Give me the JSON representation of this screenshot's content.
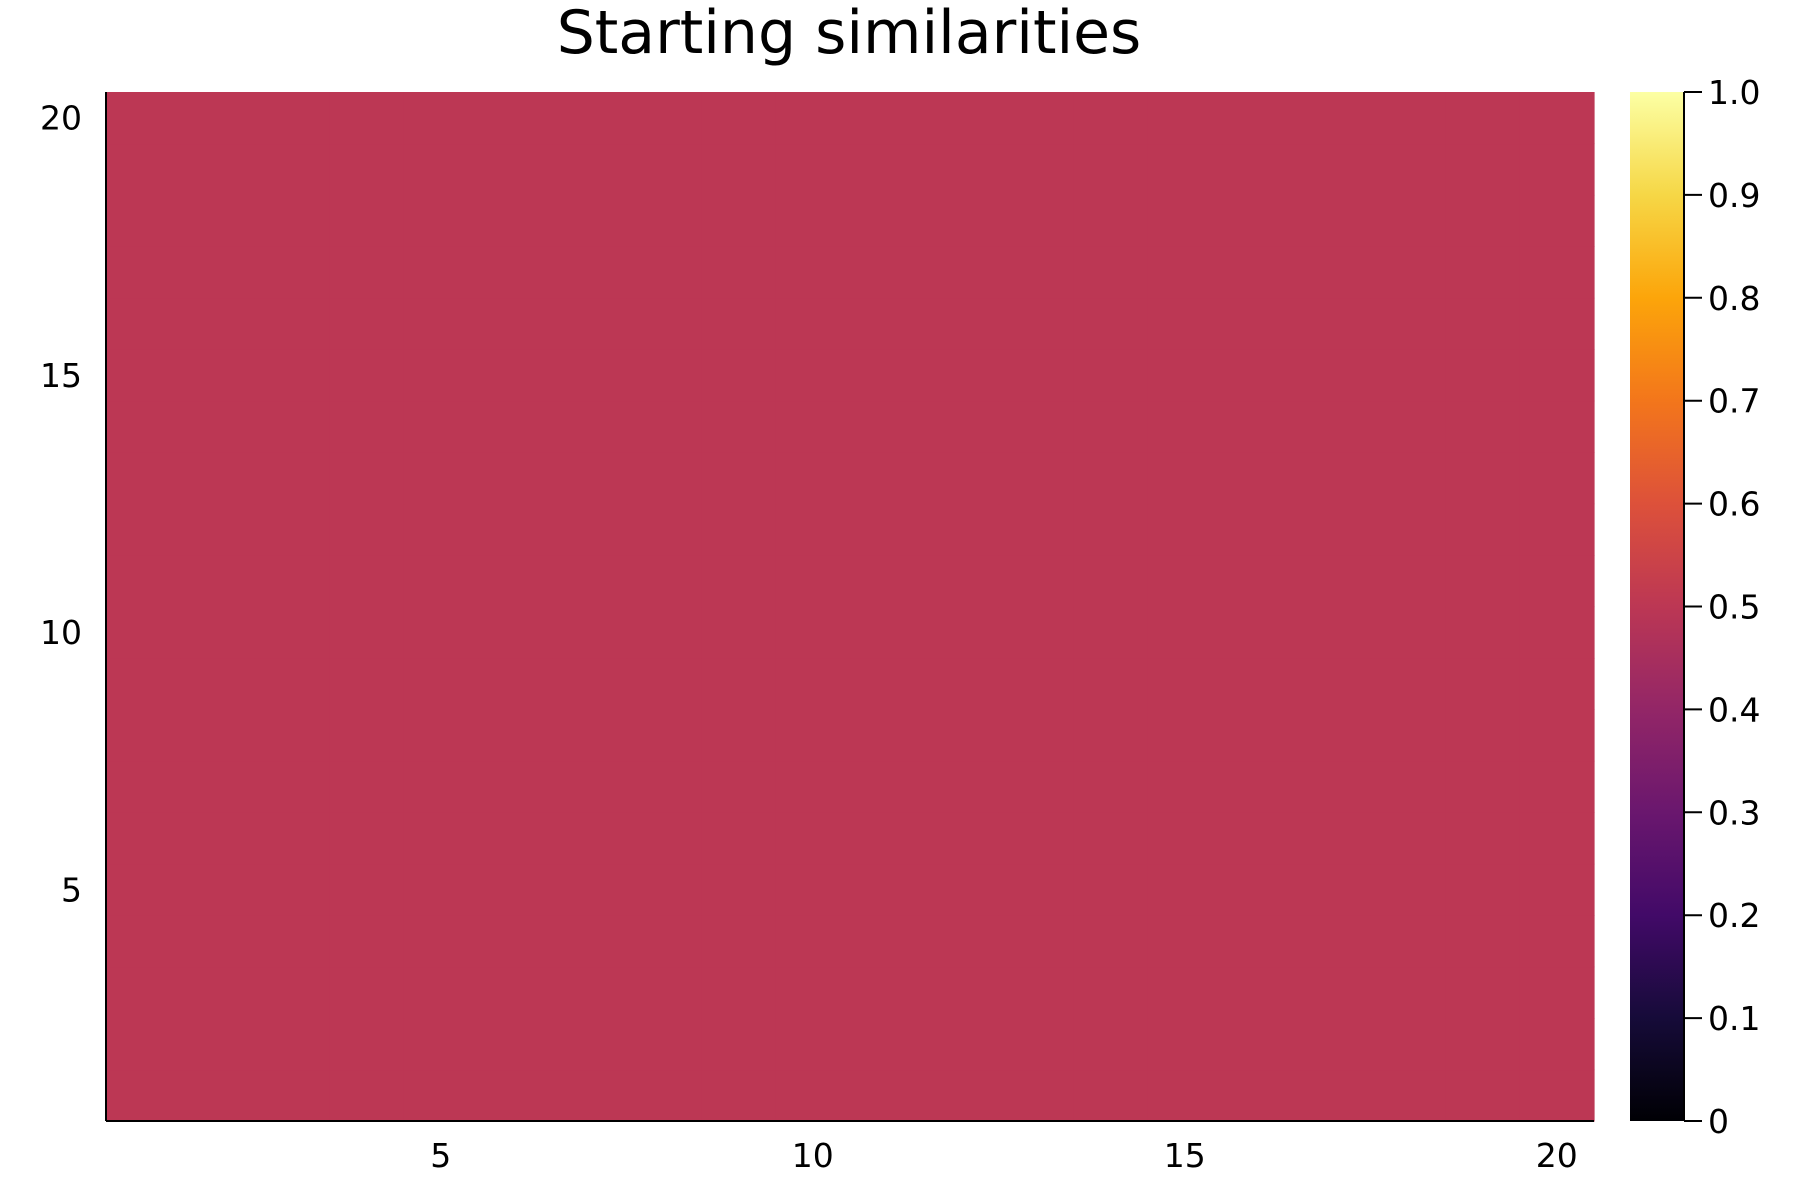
{
  "chart_data": {
    "type": "heatmap",
    "title": "Starting similarities",
    "xlabel": "",
    "ylabel": "",
    "rows": 20,
    "cols": 20,
    "xlim": [
      0.5,
      20.5
    ],
    "ylim": [
      0.5,
      20.5
    ],
    "x_ticks": [
      5,
      10,
      15,
      20
    ],
    "y_ticks": [
      5,
      10,
      15,
      20
    ],
    "x_tick_labels": [
      "5",
      "10",
      "15",
      "20"
    ],
    "y_tick_labels": [
      "5",
      "10",
      "15",
      "20"
    ],
    "fill_value": 0.5,
    "colorbar": {
      "colormap": "inferno",
      "range": [
        0,
        1
      ],
      "ticks": [
        0,
        0.1,
        0.2,
        0.3,
        0.4,
        0.5,
        0.6,
        0.7,
        0.8,
        0.9,
        1.0
      ],
      "tick_labels": [
        "0",
        "0.1",
        "0.2",
        "0.3",
        "0.4",
        "0.5",
        "0.6",
        "0.7",
        "0.8",
        "0.9",
        "1.0"
      ]
    },
    "grid": false,
    "legend": "none"
  }
}
